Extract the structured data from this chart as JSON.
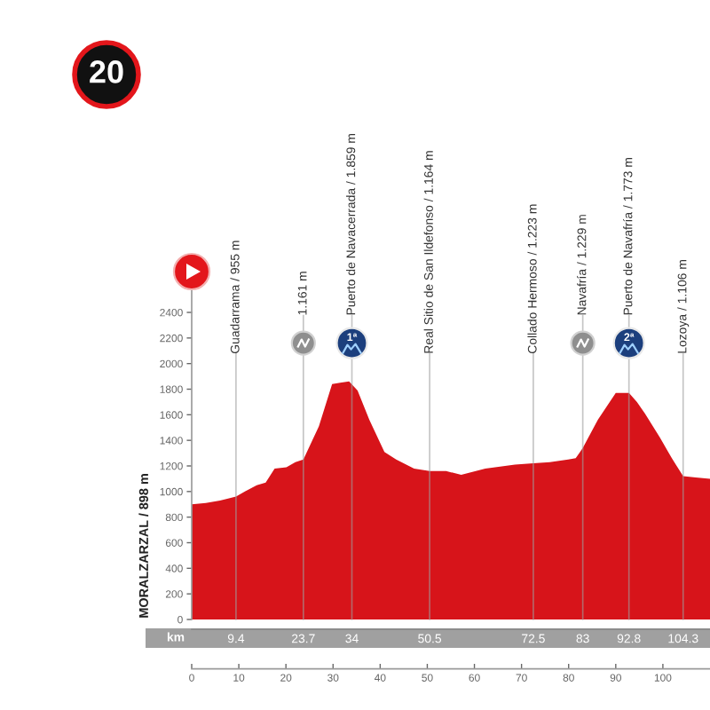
{
  "chart_data": {
    "type": "area",
    "title": "20",
    "x2label": "km",
    "ylabel": "MORALZARZAL / 898 m",
    "x": [
      0,
      3,
      6,
      9.4,
      11.3,
      13.8,
      15.7,
      17.6,
      20.1,
      22,
      23.7,
      27,
      29.8,
      31.5,
      33.4,
      35.2,
      37.7,
      40.9,
      43.4,
      47.2,
      50.5,
      54,
      57.2,
      62.3,
      68.6,
      72.5,
      76,
      79.9,
      81.5,
      83,
      86.2,
      90,
      91.5,
      92.8,
      94.5,
      96.2,
      99.4,
      101.9,
      104.3,
      107,
      110
    ],
    "series": [
      {
        "color": "#d7141a",
        "values": [
          900,
          910,
          930,
          960,
          1000,
          1050,
          1070,
          1180,
          1190,
          1230,
          1250,
          1510,
          1840,
          1850,
          1860,
          1790,
          1560,
          1310,
          1250,
          1180,
          1160,
          1160,
          1130,
          1180,
          1210,
          1220,
          1230,
          1250,
          1260,
          1340,
          1560,
          1770,
          1770,
          1770,
          1700,
          1610,
          1420,
          1260,
          1120,
          1110,
          1100
        ]
      }
    ],
    "xlim": [
      0,
      110
    ],
    "xticks": [
      0,
      10,
      20,
      30,
      40,
      50,
      60,
      70,
      80,
      90,
      100
    ],
    "x2lim": [
      0,
      110
    ],
    "x2ticks": [
      9.4,
      23.7,
      34,
      50.5,
      72.5,
      83,
      92.8,
      104.3
    ],
    "ylim": [
      0,
      2400
    ],
    "yticks": [
      0,
      200,
      400,
      600,
      800,
      1000,
      1200,
      1400,
      1600,
      1800,
      2000,
      2200,
      2400
    ],
    "ref_lines": [
      {
        "axis": "x",
        "value": 9.4,
        "label": "Guadarrama / 955 m",
        "color": "#9e9e9e"
      },
      {
        "axis": "x",
        "value": 23.7,
        "label": "1.161 m",
        "color": "#9e9e9e"
      },
      {
        "axis": "x",
        "value": 34,
        "label": "Puerto de Navacerrada / 1.859 m",
        "color": "#9e9e9e"
      },
      {
        "axis": "x",
        "value": 50.5,
        "label": "Real Sitio de San Ildefonso / 1.164 m",
        "color": "#9e9e9e"
      },
      {
        "axis": "x",
        "value": 72.5,
        "label": "Collado Hermoso / 1.223 m",
        "color": "#9e9e9e"
      },
      {
        "axis": "x",
        "value": 83,
        "label": "Navafría / 1.229 m",
        "color": "#9e9e9e"
      },
      {
        "axis": "x",
        "value": 92.8,
        "label": "Puerto de Navafría / 1.773 m",
        "color": "#9e9e9e"
      },
      {
        "axis": "x",
        "value": 104.3,
        "label": "Lozoya / 1.106 m",
        "color": "#9e9e9e"
      }
    ],
    "annotations": [
      {
        "text": "1ª",
        "x": 34,
        "y": 2200
      },
      {
        "text": "2ª",
        "x": 92.8,
        "y": 2200
      }
    ]
  }
}
